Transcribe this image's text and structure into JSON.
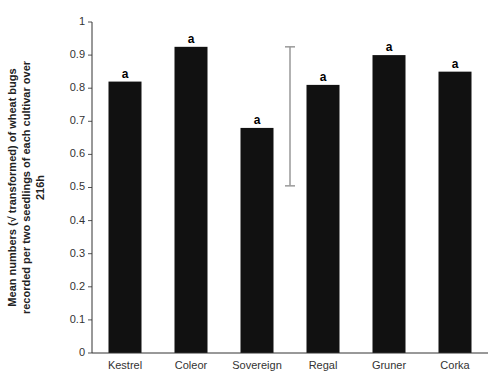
{
  "chart_data": {
    "type": "bar",
    "ylabel": "Mean numbers (√ transformed) of wheat bugs\nrecorded per two seedlings of each cultivar over\n216h",
    "categories": [
      "Kestrel",
      "Coleor",
      "Sovereign",
      "Regal",
      "Gruner",
      "Corka"
    ],
    "values": [
      0.82,
      0.925,
      0.68,
      0.81,
      0.9,
      0.85
    ],
    "color": "#111111",
    "annotations": [
      "a",
      "a",
      "a",
      "a",
      "a",
      "a"
    ],
    "lsd": {
      "low": 0.505,
      "high": 0.925,
      "color": "#999999",
      "between": [
        "Sovereign",
        "Regal"
      ]
    },
    "ylim": [
      0,
      1.0
    ],
    "yticks": [
      0,
      0.1,
      0.2,
      0.3,
      0.4,
      0.5,
      0.6,
      0.7,
      0.8,
      0.9,
      1
    ]
  }
}
